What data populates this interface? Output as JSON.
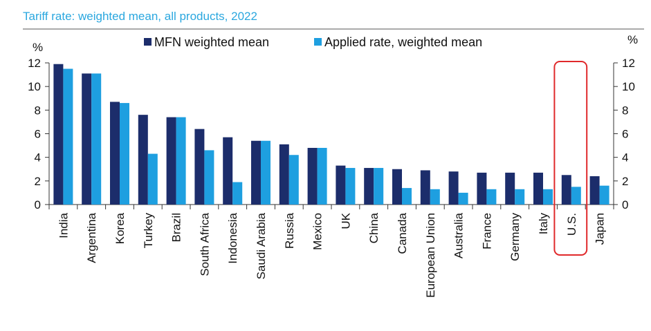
{
  "chart_data": {
    "type": "bar",
    "title": "Tariff rate: weighted mean, all products, 2022",
    "ylabel_left": "%",
    "ylabel_right": "%",
    "ylim": [
      0,
      12
    ],
    "yticks": [
      0,
      2,
      4,
      6,
      8,
      10,
      12
    ],
    "categories": [
      "India",
      "Argentina",
      "Korea",
      "Turkey",
      "Brazil",
      "South Africa",
      "Indonesia",
      "Saudi Arabia",
      "Russia",
      "Mexico",
      "UK",
      "China",
      "Canada",
      "European Union",
      "Australia",
      "France",
      "Germany",
      "Italy",
      "U.S.",
      "Japan"
    ],
    "series": [
      {
        "name": "MFN weighted mean",
        "color": "#1c2d6b",
        "values": [
          11.9,
          11.1,
          8.7,
          7.6,
          7.4,
          6.4,
          5.7,
          5.4,
          5.1,
          4.8,
          3.3,
          3.1,
          3.0,
          2.9,
          2.8,
          2.7,
          2.7,
          2.7,
          2.5,
          2.4
        ]
      },
      {
        "name": "Applied rate, weighted mean",
        "color": "#1e9fe0",
        "values": [
          11.5,
          11.1,
          8.6,
          4.3,
          7.4,
          4.6,
          1.9,
          5.4,
          4.2,
          4.8,
          3.1,
          3.1,
          1.4,
          1.3,
          1.0,
          1.3,
          1.3,
          1.3,
          1.5,
          1.6
        ]
      }
    ],
    "highlight": {
      "category": "U.S.",
      "color": "#e0282a"
    },
    "legend": "top",
    "grid": false
  }
}
